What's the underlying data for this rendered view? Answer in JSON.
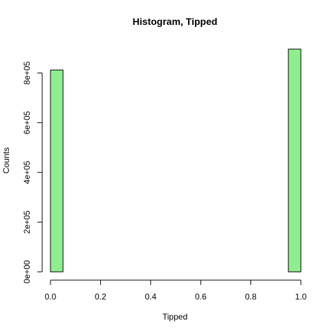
{
  "chart_data": {
    "type": "bar",
    "title": "Histogram, Tipped",
    "xlabel": "Tipped",
    "ylabel": "Counts",
    "bar_color": "#90EE90",
    "xlim": [
      0,
      1
    ],
    "ylim": [
      0,
      900000
    ],
    "x_ticks": [
      {
        "value": 0.0,
        "label": "0.0"
      },
      {
        "value": 0.2,
        "label": "0.2"
      },
      {
        "value": 0.4,
        "label": "0.4"
      },
      {
        "value": 0.6,
        "label": "0.6"
      },
      {
        "value": 0.8,
        "label": "0.8"
      },
      {
        "value": 1.0,
        "label": "1.0"
      }
    ],
    "y_ticks": [
      {
        "value": 0,
        "label": "0e+00"
      },
      {
        "value": 200000,
        "label": "2e+05"
      },
      {
        "value": 400000,
        "label": "4e+05"
      },
      {
        "value": 600000,
        "label": "6e+05"
      },
      {
        "value": 800000,
        "label": "8e+05"
      }
    ],
    "bins": [
      {
        "x0": 0.0,
        "x1": 0.05,
        "count": 812000
      },
      {
        "x0": 0.05,
        "x1": 0.1,
        "count": 0
      },
      {
        "x0": 0.1,
        "x1": 0.15,
        "count": 0
      },
      {
        "x0": 0.15,
        "x1": 0.2,
        "count": 0
      },
      {
        "x0": 0.2,
        "x1": 0.25,
        "count": 0
      },
      {
        "x0": 0.25,
        "x1": 0.3,
        "count": 0
      },
      {
        "x0": 0.3,
        "x1": 0.35,
        "count": 0
      },
      {
        "x0": 0.35,
        "x1": 0.4,
        "count": 0
      },
      {
        "x0": 0.4,
        "x1": 0.45,
        "count": 0
      },
      {
        "x0": 0.45,
        "x1": 0.5,
        "count": 0
      },
      {
        "x0": 0.5,
        "x1": 0.55,
        "count": 0
      },
      {
        "x0": 0.55,
        "x1": 0.6,
        "count": 0
      },
      {
        "x0": 0.6,
        "x1": 0.65,
        "count": 0
      },
      {
        "x0": 0.65,
        "x1": 0.7,
        "count": 0
      },
      {
        "x0": 0.7,
        "x1": 0.75,
        "count": 0
      },
      {
        "x0": 0.75,
        "x1": 0.8,
        "count": 0
      },
      {
        "x0": 0.8,
        "x1": 0.85,
        "count": 0
      },
      {
        "x0": 0.85,
        "x1": 0.9,
        "count": 0
      },
      {
        "x0": 0.9,
        "x1": 0.95,
        "count": 0
      },
      {
        "x0": 0.95,
        "x1": 1.0,
        "count": 896000
      }
    ]
  }
}
